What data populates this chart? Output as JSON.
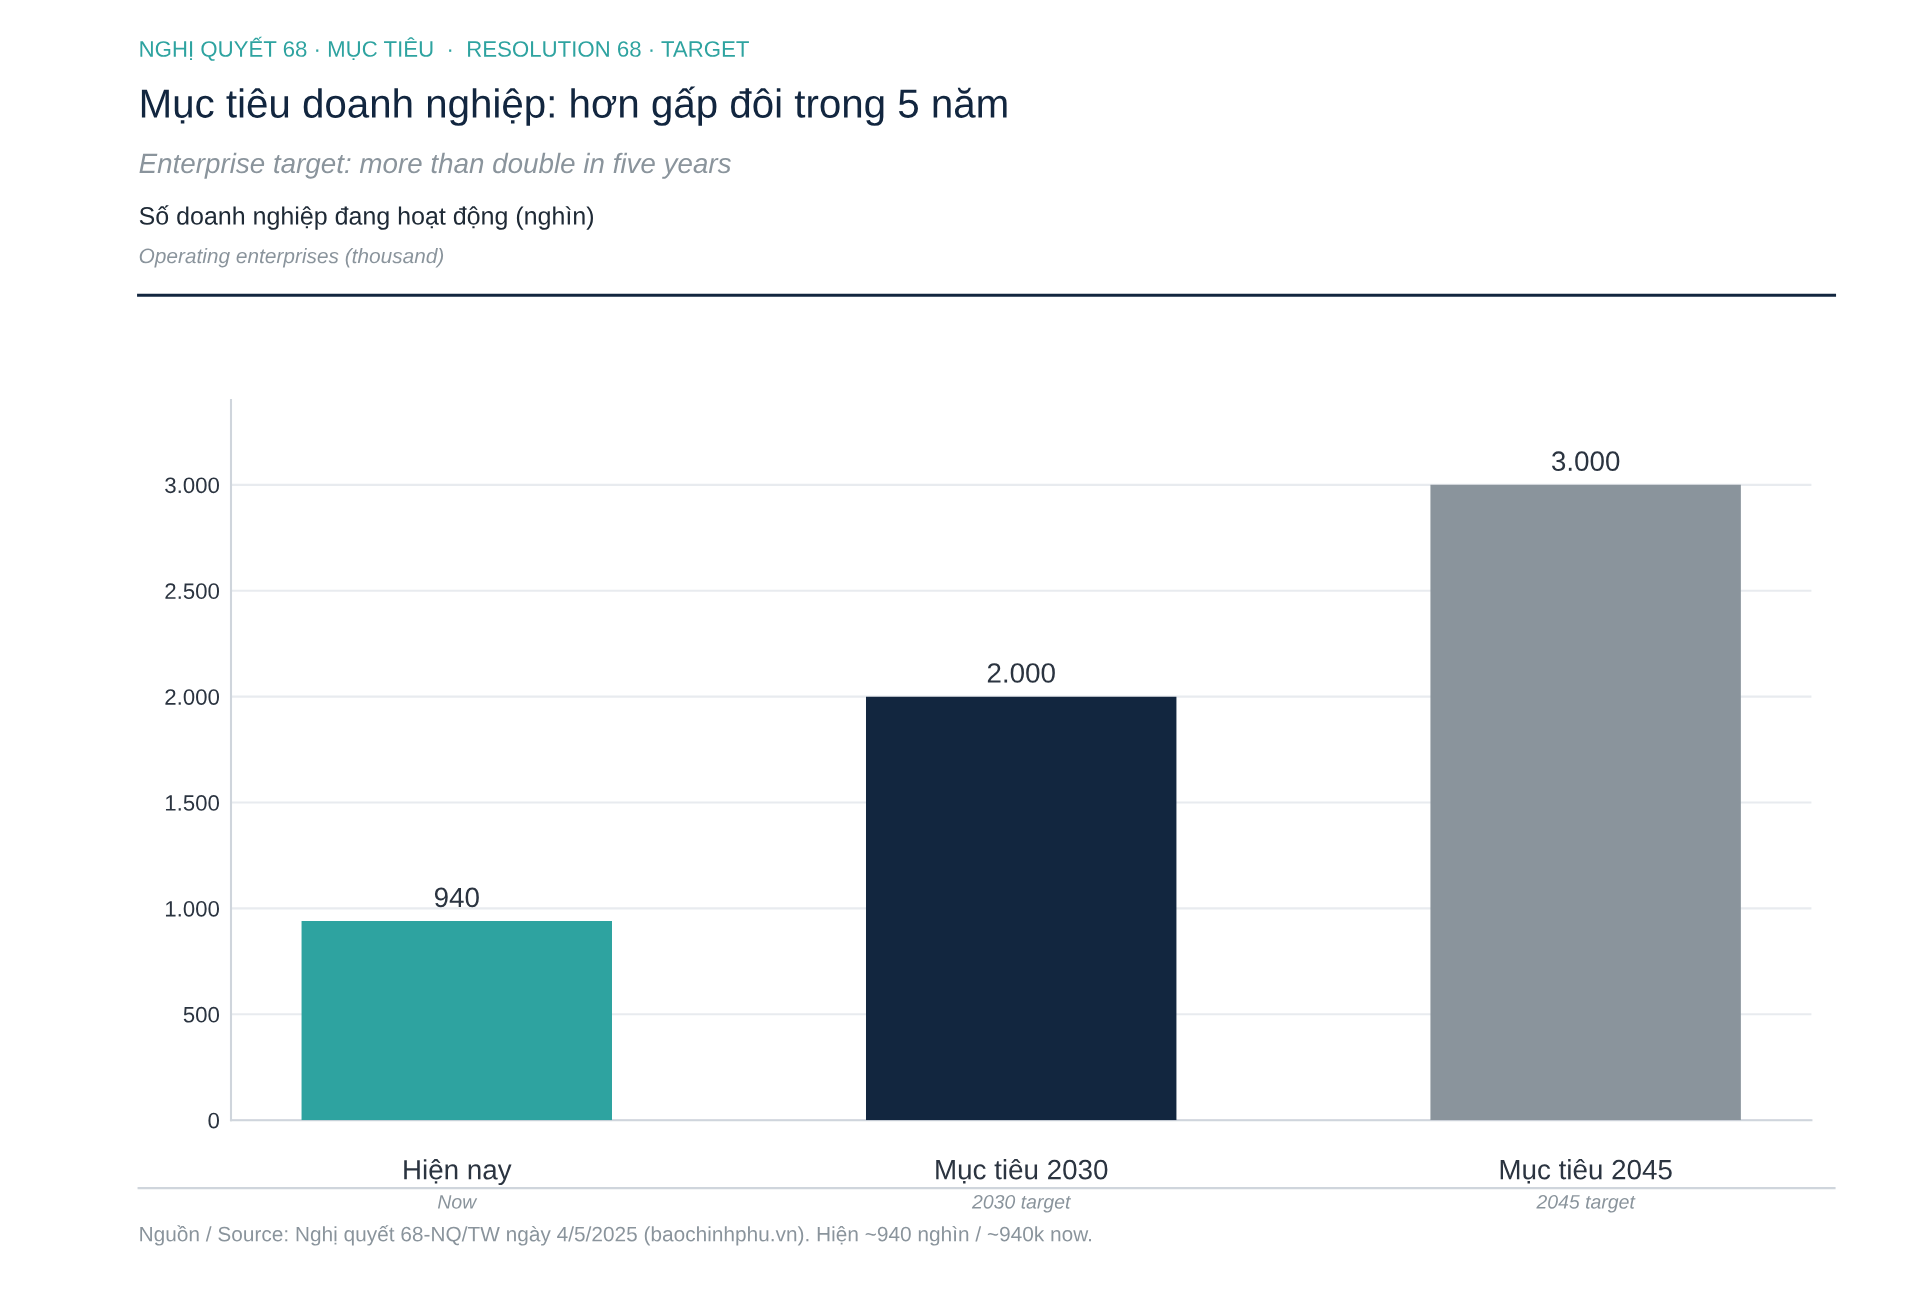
{
  "chart_data": {
    "type": "bar",
    "title": "Mục tiêu doanh nghiệp: hơn gấp đôi trong 5 năm",
    "subtitle": "Enterprise target: more than double in five years",
    "annotations": [
      "NGHỊ QUYẾT 68 · MỤC TIÊU  ·  RESOLUTION 68 · TARGET",
      "Số doanh nghiệp đang hoạt động (nghìn)",
      "Operating enterprises (thousand)",
      "Nguồn / Source: Nghị quyết 68-NQ/TW ngày 4/5/2025 (baochinhphu.vn). Hiện ~940 nghìn / ~940k now.",
      "Now",
      "2030 target",
      "2045 target"
    ],
    "categories": [
      "Hiện nay",
      "Mục tiêu 2030",
      "Mục tiêu 2045"
    ],
    "values": [
      940,
      2000,
      3000
    ],
    "colors": [
      "#2ea3a0",
      "#12263f",
      "#8a949c"
    ],
    "value_labels": [
      "940",
      "2.000",
      "3.000"
    ],
    "ylim": [
      0,
      3400
    ],
    "yticks": [
      0,
      {
        "value": 500,
        "label": "500"
      },
      {
        "value": 1000,
        "label": "1.000"
      },
      {
        "value": 1500,
        "label": "1.500"
      },
      {
        "value": 2000,
        "label": "2.000"
      },
      {
        "value": 2500,
        "label": "2.500"
      },
      {
        "value": 3000,
        "label": "3.000"
      }
    ],
    "grid": "y",
    "legend": false
  }
}
